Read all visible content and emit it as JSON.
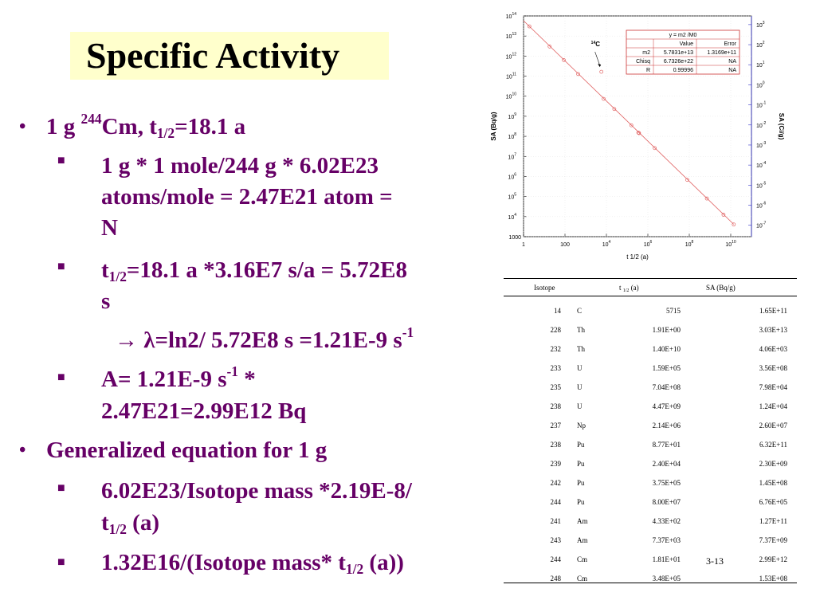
{
  "slide": {
    "title": "Specific Activity",
    "page_number": "3-13"
  },
  "bullets": {
    "b1": {
      "a": "1 g ",
      "sup": "244",
      "b": "Cm, t",
      "sub": "1/2",
      "c": "=18.1 a"
    },
    "s1": {
      "l1": "1 g * 1 mole/244 g * 6.02E23",
      "l2": "atoms/mole = 2.47E21 atom =",
      "l3": "N"
    },
    "s2": {
      "a": "t",
      "sub": "1/2",
      "b": "=18.1 a *3.16E7 s/a = 5.72E8",
      "l2": "s"
    },
    "s3": {
      "arrow": "→ ",
      "lambda": "λ",
      "a": "=ln2/ 5.72E8 s =1.21E-9 s",
      "sup": "-1"
    },
    "s4": {
      "a": "A= 1.21E-9 s",
      "sup": "-1",
      "b": " *",
      "l2": "2.47E21=2.99E12 Bq"
    },
    "b2": "Generalized equation for 1 g",
    "s5": {
      "a": "6.02E23/Isotope mass *2.19E-8/",
      "b": "t",
      "sub": "1/2",
      "c": " (a)"
    },
    "s6": {
      "a": "1.32E16/(Isotope mass* t",
      "sub": "1/2",
      "b": " (a))"
    }
  },
  "chart_data": {
    "type": "scatter",
    "x_scale": "log",
    "y_scale": "log",
    "xlabel": "t 1/2 (a)",
    "ylabel": "SA (Bq/g)",
    "y2label": "SA (Ci/g)",
    "xlim": [
      1,
      100000000000.0
    ],
    "ylim": [
      1000,
      100000000000000.0
    ],
    "x_ticks": [
      {
        "v": 1,
        "base": "1",
        "exp": ""
      },
      {
        "v": 100,
        "base": "100",
        "exp": ""
      },
      {
        "v": 10000.0,
        "base": "10",
        "exp": "4"
      },
      {
        "v": 1000000.0,
        "base": "10",
        "exp": "6"
      },
      {
        "v": 100000000.0,
        "base": "10",
        "exp": "8"
      },
      {
        "v": 10000000000.0,
        "base": "10",
        "exp": "10"
      }
    ],
    "y_ticks": [
      {
        "v": 1000,
        "base": "1000",
        "exp": ""
      },
      {
        "v": 10000.0,
        "base": "10",
        "exp": "4"
      },
      {
        "v": 100000.0,
        "base": "10",
        "exp": "5"
      },
      {
        "v": 1000000.0,
        "base": "10",
        "exp": "6"
      },
      {
        "v": 10000000.0,
        "base": "10",
        "exp": "7"
      },
      {
        "v": 100000000.0,
        "base": "10",
        "exp": "8"
      },
      {
        "v": 1000000000.0,
        "base": "10",
        "exp": "9"
      },
      {
        "v": 10000000000.0,
        "base": "10",
        "exp": "10"
      },
      {
        "v": 100000000000.0,
        "base": "10",
        "exp": "11"
      },
      {
        "v": 1000000000000.0,
        "base": "10",
        "exp": "12"
      },
      {
        "v": 10000000000000.0,
        "base": "10",
        "exp": "13"
      },
      {
        "v": 100000000000000.0,
        "base": "10",
        "exp": "14"
      }
    ],
    "y2_ticks": [
      {
        "v": 1e-07,
        "base": "10",
        "exp": "-7"
      },
      {
        "v": 1e-06,
        "base": "10",
        "exp": "-6"
      },
      {
        "v": 1e-05,
        "base": "10",
        "exp": "-5"
      },
      {
        "v": 0.0001,
        "base": "10",
        "exp": "-4"
      },
      {
        "v": 0.001,
        "base": "10",
        "exp": "-3"
      },
      {
        "v": 0.01,
        "base": "10",
        "exp": "-2"
      },
      {
        "v": 0.1,
        "base": "10",
        "exp": "-1"
      },
      {
        "v": 1,
        "base": "10",
        "exp": "0"
      },
      {
        "v": 10,
        "base": "10",
        "exp": "1"
      },
      {
        "v": 100,
        "base": "10",
        "exp": "2"
      },
      {
        "v": 1000,
        "base": "10",
        "exp": "3"
      }
    ],
    "points": [
      {
        "x": 1.91,
        "y": 30300000000000.0
      },
      {
        "x": 18.1,
        "y": 2990000000000.0
      },
      {
        "x": 87.7,
        "y": 632000000000.0
      },
      {
        "x": 433,
        "y": 127000000000.0
      },
      {
        "x": 5715,
        "y": 165000000000.0
      },
      {
        "x": 7370,
        "y": 7370000000.0
      },
      {
        "x": 24000,
        "y": 2300000000.0
      },
      {
        "x": 159000,
        "y": 356000000.0
      },
      {
        "x": 348000,
        "y": 153000000.0
      },
      {
        "x": 375000,
        "y": 145000000.0
      },
      {
        "x": 2140000,
        "y": 26000000.0
      },
      {
        "x": 80000000,
        "y": 676000
      },
      {
        "x": 704000000,
        "y": 79800
      },
      {
        "x": 4470000000,
        "y": 12400
      },
      {
        "x": 14000000000,
        "y": 4060
      }
    ],
    "fit_line": {
      "x": [
        1,
        14000000000
      ],
      "y": [
        57831000000000.0,
        4131
      ]
    },
    "annotation": {
      "pre": "14",
      "post": "C",
      "x": 5715,
      "y": 165000000000.0
    },
    "fit_box": {
      "title": "y = m2 /M0",
      "headers": [
        "",
        "Value",
        "Error"
      ],
      "rows": [
        [
          "m2",
          "5.7831e+13",
          "1.3169e+11"
        ],
        [
          "Chisq",
          "6.7326e+22",
          "NA"
        ],
        [
          "R",
          "0.99996",
          "NA"
        ]
      ]
    },
    "colors": {
      "points": "#e06060",
      "line": "#e06060",
      "axis2": "#3333cc",
      "box": "#cc3333"
    }
  },
  "table": {
    "headers": {
      "isotope": "Isotope",
      "t_pre": "t ",
      "t_sub": "1/2",
      "t_post": " (a)",
      "sa": "SA (Bq/g)"
    },
    "rows": [
      [
        "14",
        "C",
        "5715",
        "1.65E+11"
      ],
      [
        "228",
        "Th",
        "1.91E+00",
        "3.03E+13"
      ],
      [
        "232",
        "Th",
        "1.40E+10",
        "4.06E+03"
      ],
      [
        "233",
        "U",
        "1.59E+05",
        "3.56E+08"
      ],
      [
        "235",
        "U",
        "7.04E+08",
        "7.98E+04"
      ],
      [
        "238",
        "U",
        "4.47E+09",
        "1.24E+04"
      ],
      [
        "237",
        "Np",
        "2.14E+06",
        "2.60E+07"
      ],
      [
        "238",
        "Pu",
        "8.77E+01",
        "6.32E+11"
      ],
      [
        "239",
        "Pu",
        "2.40E+04",
        "2.30E+09"
      ],
      [
        "242",
        "Pu",
        "3.75E+05",
        "1.45E+08"
      ],
      [
        "244",
        "Pu",
        "8.00E+07",
        "6.76E+05"
      ],
      [
        "241",
        "Am",
        "4.33E+02",
        "1.27E+11"
      ],
      [
        "243",
        "Am",
        "7.37E+03",
        "7.37E+09"
      ],
      [
        "244",
        "Cm",
        "1.81E+01",
        "2.99E+12"
      ],
      [
        "248",
        "Cm",
        "3.48E+05",
        "1.53E+08"
      ]
    ]
  }
}
